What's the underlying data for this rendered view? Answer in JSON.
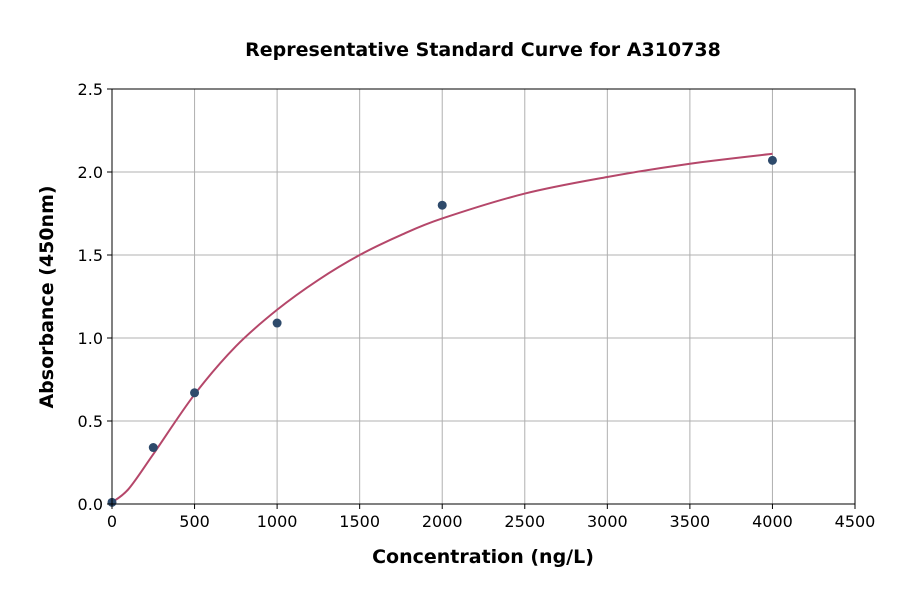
{
  "chart_data": {
    "type": "scatter",
    "title": "Representative Standard Curve for A310738",
    "xlabel": "Concentration (ng/L)",
    "ylabel": "Absorbance (450nm)",
    "xlim": [
      0,
      4500
    ],
    "ylim": [
      0,
      2.5
    ],
    "xticks": [
      "0",
      "500",
      "1000",
      "1500",
      "2000",
      "2500",
      "3000",
      "3500",
      "4000",
      "4500"
    ],
    "yticks": [
      "0.0",
      "0.5",
      "1.0",
      "1.5",
      "2.0",
      "2.5"
    ],
    "grid": true,
    "points": {
      "x": [
        0,
        250,
        500,
        1000,
        2000,
        4000
      ],
      "y": [
        0.01,
        0.34,
        0.67,
        1.09,
        1.8,
        2.07
      ]
    },
    "fit_curve": {
      "x": [
        0,
        100,
        250,
        500,
        750,
        1000,
        1250,
        1500,
        1750,
        2000,
        2500,
        3000,
        3500,
        4000
      ],
      "y": [
        0.01,
        0.09,
        0.3,
        0.66,
        0.95,
        1.17,
        1.35,
        1.5,
        1.62,
        1.72,
        1.87,
        1.97,
        2.05,
        2.11
      ]
    },
    "colors": {
      "points": "#2e4a6b",
      "curve": "#b5476a",
      "grid": "#b0b0b0"
    }
  }
}
